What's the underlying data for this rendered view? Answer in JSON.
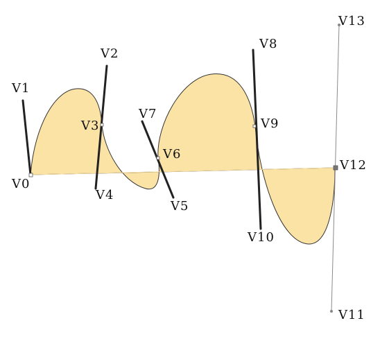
{
  "diagram": {
    "fill_color": "#fbe3a6",
    "edge_color": "#333333",
    "handle_color": "#222222",
    "guide_color": "#8a8a8a",
    "labels": {
      "v0": "V0",
      "v1": "V1",
      "v2": "V2",
      "v3": "V3",
      "v4": "V4",
      "v5": "V5",
      "v6": "V6",
      "v7": "V7",
      "v8": "V8",
      "v9": "V9",
      "v10": "V10",
      "v11": "V11",
      "v12": "V12",
      "v13": "V13"
    }
  }
}
